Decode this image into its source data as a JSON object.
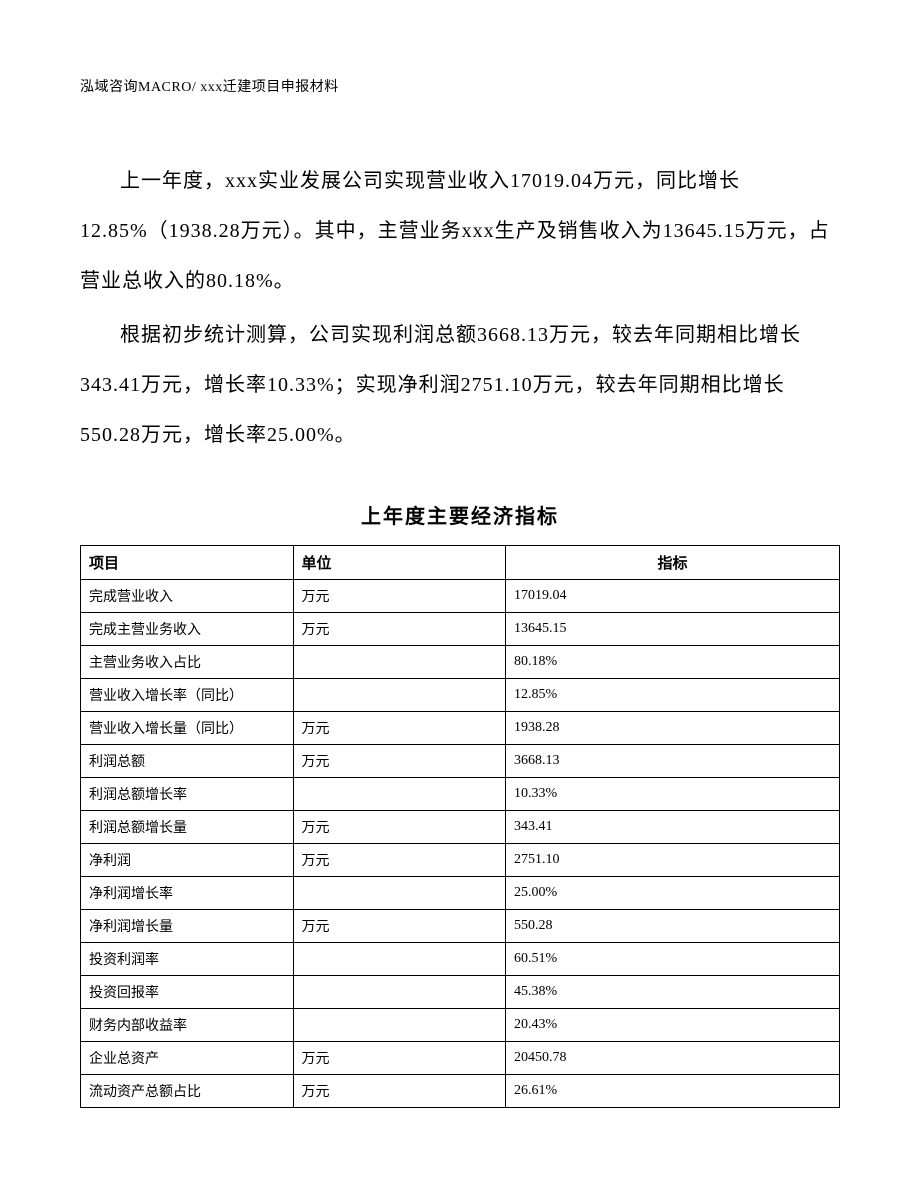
{
  "header_text": "泓域咨询MACRO/   xxx迁建项目申报材料",
  "paragraph1": "上一年度，xxx实业发展公司实现营业收入17019.04万元，同比增长12.85%（1938.28万元）。其中，主营业务xxx生产及销售收入为13645.15万元，占营业总收入的80.18%。",
  "paragraph2": "根据初步统计测算，公司实现利润总额3668.13万元，较去年同期相比增长343.41万元，增长率10.33%；实现净利润2751.10万元，较去年同期相比增长550.28万元，增长率25.00%。",
  "table": {
    "title": "上年度主要经济指标",
    "columns": [
      "项目",
      "单位",
      "指标"
    ],
    "rows": [
      [
        "完成营业收入",
        "万元",
        "17019.04"
      ],
      [
        "完成主营业务收入",
        "万元",
        "13645.15"
      ],
      [
        "主营业务收入占比",
        "",
        "80.18%"
      ],
      [
        "营业收入增长率（同比）",
        "",
        "12.85%"
      ],
      [
        "营业收入增长量（同比）",
        "万元",
        "1938.28"
      ],
      [
        "利润总额",
        "万元",
        "3668.13"
      ],
      [
        "利润总额增长率",
        "",
        "10.33%"
      ],
      [
        "利润总额增长量",
        "万元",
        "343.41"
      ],
      [
        "净利润",
        "万元",
        "2751.10"
      ],
      [
        "净利润增长率",
        "",
        "25.00%"
      ],
      [
        "净利润增长量",
        "万元",
        "550.28"
      ],
      [
        "投资利润率",
        "",
        "60.51%"
      ],
      [
        "投资回报率",
        "",
        "45.38%"
      ],
      [
        "财务内部收益率",
        "",
        "20.43%"
      ],
      [
        "企业总资产",
        "万元",
        "20450.78"
      ],
      [
        "流动资产总额占比",
        "万元",
        "26.61%"
      ]
    ]
  }
}
